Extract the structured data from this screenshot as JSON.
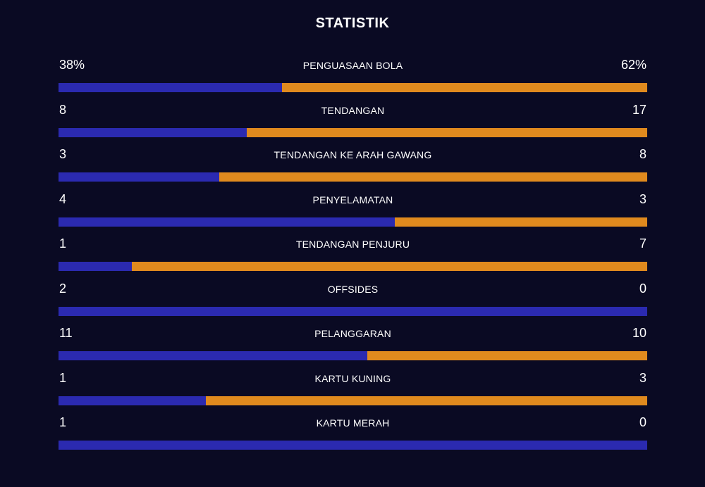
{
  "header": {
    "title": "STATISTIK"
  },
  "colors": {
    "background": "#0a0a23",
    "home": "#2b2ab0",
    "away": "#e08a1e",
    "text": "#ffffff"
  },
  "stats": [
    {
      "label": "PENGUASAAN BOLA",
      "home": "38%",
      "away": "62%",
      "home_share": 0.38
    },
    {
      "label": "TENDANGAN",
      "home": "8",
      "away": "17",
      "home_share": 0.32
    },
    {
      "label": "TENDANGAN KE ARAH GAWANG",
      "home": "3",
      "away": "8",
      "home_share": 0.273
    },
    {
      "label": "PENYELAMATAN",
      "home": "4",
      "away": "3",
      "home_share": 0.571
    },
    {
      "label": "TENDANGAN PENJURU",
      "home": "1",
      "away": "7",
      "home_share": 0.125
    },
    {
      "label": "OFFSIDES",
      "home": "2",
      "away": "0",
      "home_share": 1.0
    },
    {
      "label": "PELANGGARAN",
      "home": "11",
      "away": "10",
      "home_share": 0.524
    },
    {
      "label": "KARTU KUNING",
      "home": "1",
      "away": "3",
      "home_share": 0.25
    },
    {
      "label": "KARTU MERAH",
      "home": "1",
      "away": "0",
      "home_share": 1.0
    }
  ]
}
